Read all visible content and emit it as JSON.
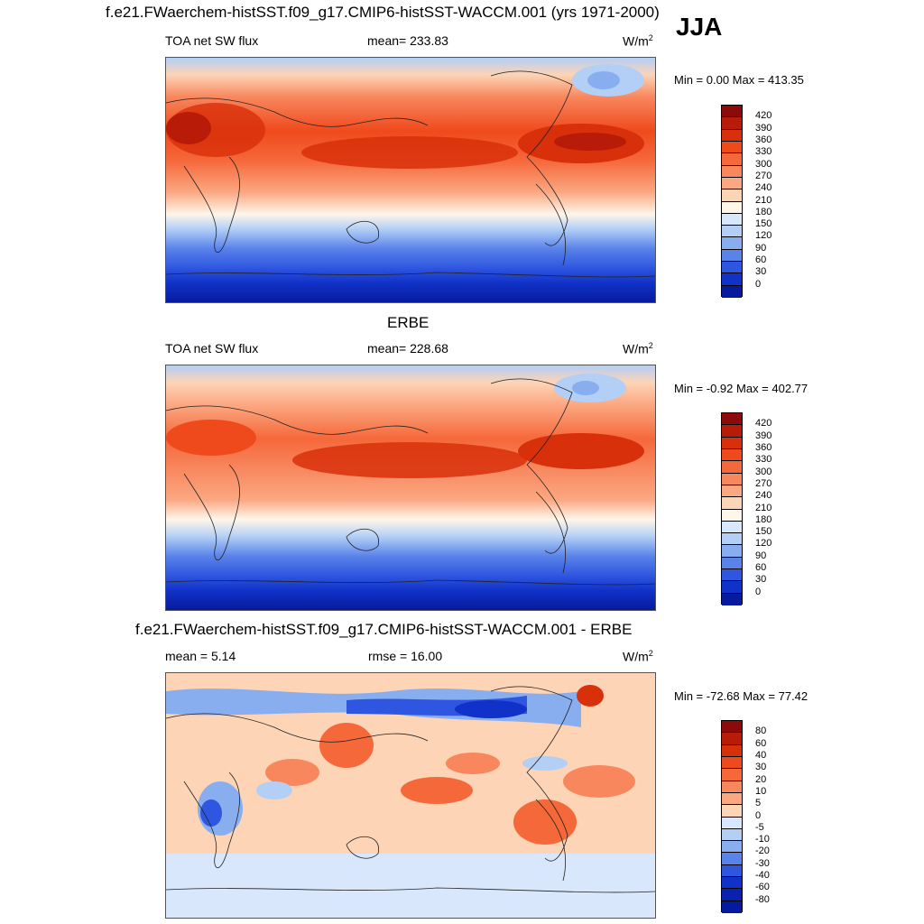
{
  "title": "f.e21.FWaerchem-histSST.f09_g17.CMIP6-histSST-WACCM.001 (yrs 1971-2000)",
  "season": "JJA",
  "panels": [
    {
      "heading": "",
      "left": "TOA net SW flux",
      "center": "mean= 233.83",
      "units": "W/m",
      "units_sup": "2",
      "minmax": "Min =   0.00 Max = 413.35",
      "colorbar": {
        "labels": [
          "420",
          "390",
          "360",
          "330",
          "300",
          "270",
          "240",
          "210",
          "180",
          "150",
          "120",
          "90",
          "60",
          "30",
          "0"
        ],
        "colors": [
          "#8c0a0a",
          "#b81c08",
          "#d8300a",
          "#ef4a1c",
          "#f5683a",
          "#f8875e",
          "#fba882",
          "#fdd4b6",
          "#fff6ea",
          "#d8e7fb",
          "#b3cff6",
          "#88aef0",
          "#5a83ea",
          "#2f56e0",
          "#1132c8",
          "#061a9e"
        ]
      }
    },
    {
      "heading": "ERBE",
      "left": "TOA net SW flux",
      "center": "mean= 228.68",
      "units": "W/m",
      "units_sup": "2",
      "minmax": "Min =  -0.92 Max = 402.77",
      "colorbar": {
        "labels": [
          "420",
          "390",
          "360",
          "330",
          "300",
          "270",
          "240",
          "210",
          "180",
          "150",
          "120",
          "90",
          "60",
          "30",
          "0"
        ],
        "colors": [
          "#8c0a0a",
          "#b81c08",
          "#d8300a",
          "#ef4a1c",
          "#f5683a",
          "#f8875e",
          "#fba882",
          "#fdd4b6",
          "#fff6ea",
          "#d8e7fb",
          "#b3cff6",
          "#88aef0",
          "#5a83ea",
          "#2f56e0",
          "#1132c8",
          "#061a9e"
        ]
      }
    },
    {
      "heading": "f.e21.FWaerchem-histSST.f09_g17.CMIP6-histSST-WACCM.001 - ERBE",
      "left": "mean =   5.14",
      "center": "rmse =  16.00",
      "units": "W/m",
      "units_sup": "2",
      "minmax": "Min = -72.68 Max =  77.42",
      "colorbar": {
        "labels": [
          "80",
          "60",
          "40",
          "30",
          "20",
          "10",
          "5",
          "0",
          "-5",
          "-10",
          "-20",
          "-30",
          "-40",
          "-60",
          "-80"
        ],
        "colors": [
          "#8c0a0a",
          "#b81c08",
          "#d8300a",
          "#ef4a1c",
          "#f5683a",
          "#f8875e",
          "#fba882",
          "#fdd4b6",
          "#d8e7fb",
          "#b3cff6",
          "#88aef0",
          "#5a83ea",
          "#2f56e0",
          "#1132c8",
          "#0a21b0",
          "#061a9e"
        ]
      }
    }
  ]
}
